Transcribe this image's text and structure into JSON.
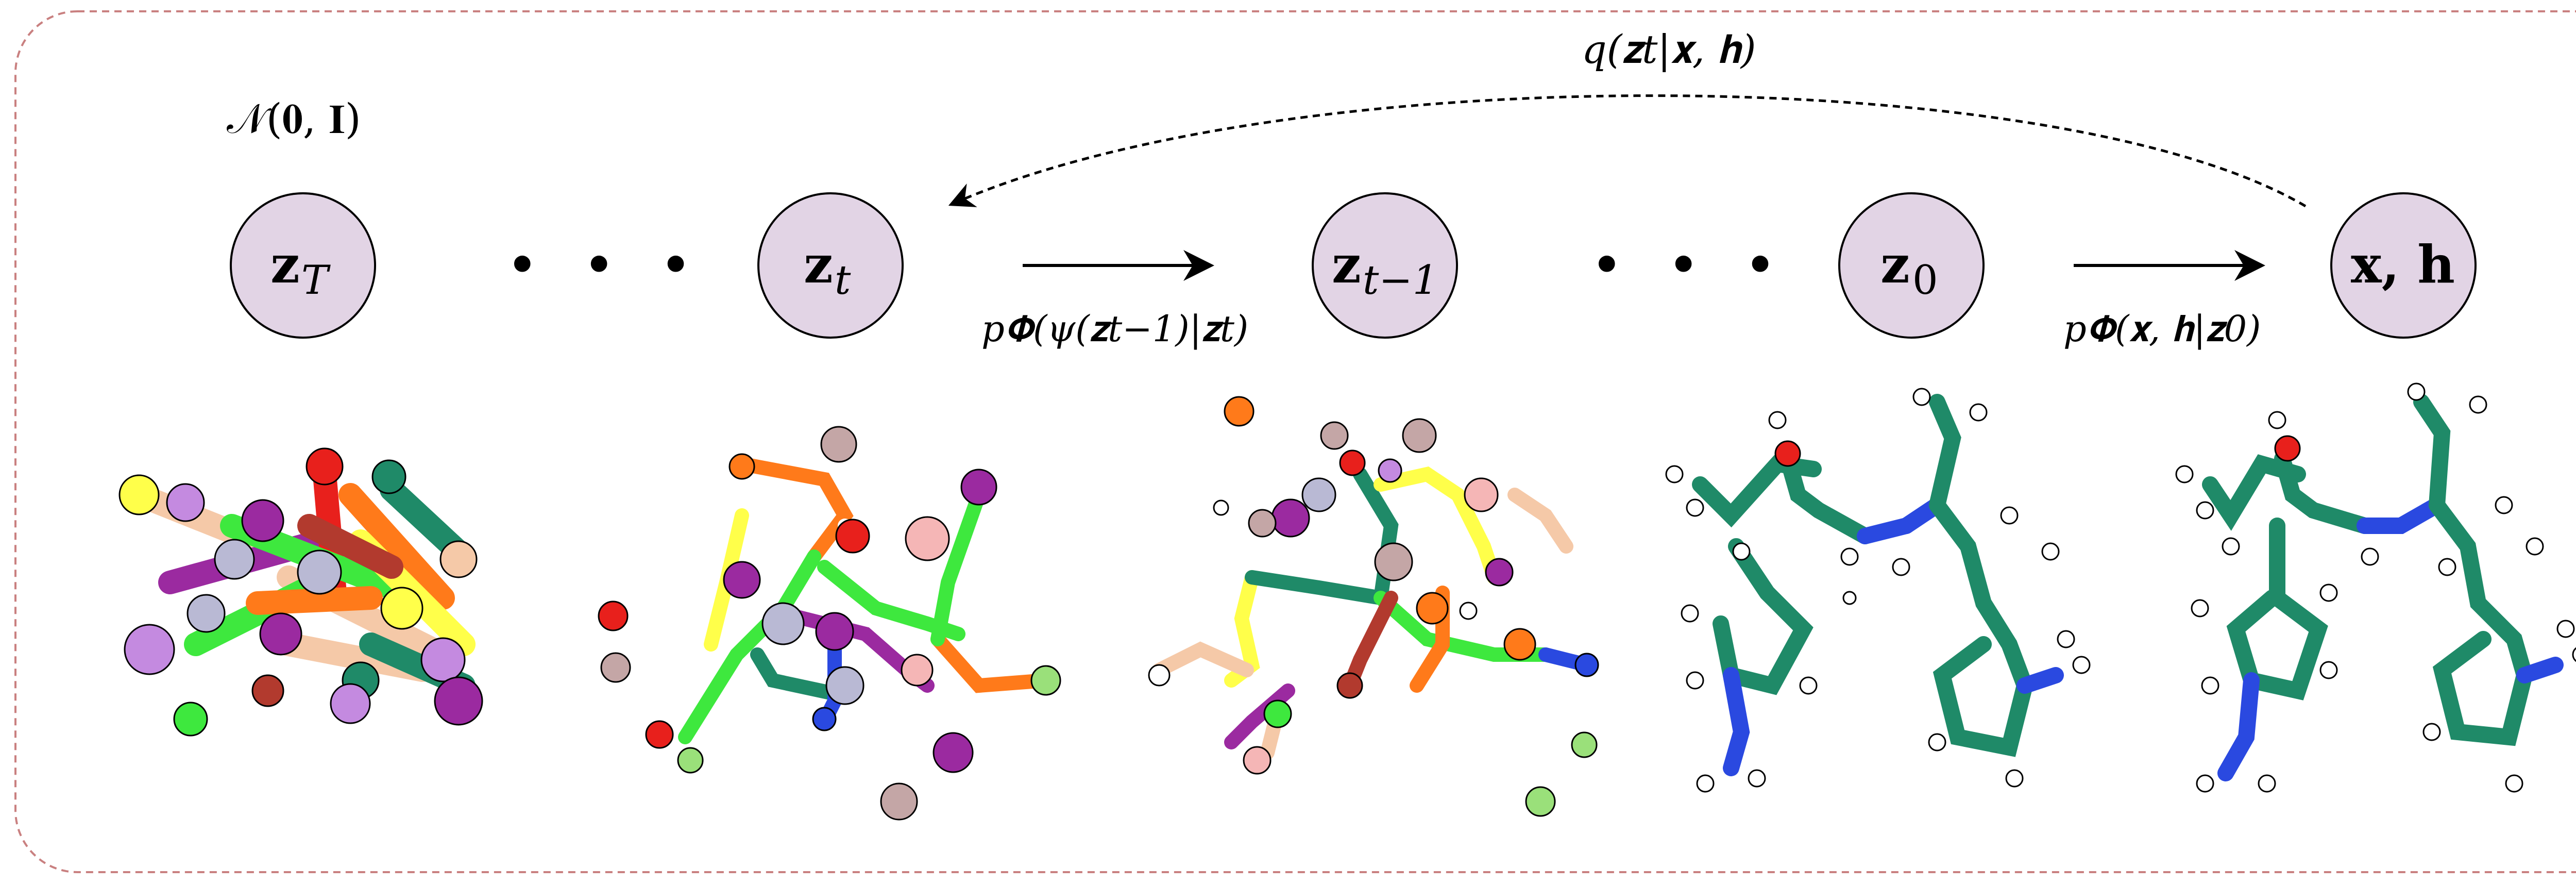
{
  "prior_label": "𝒩(𝟎, 𝐈)",
  "nodes": [
    {
      "id": "zT",
      "label": "𝐳",
      "sub": "T"
    },
    {
      "id": "zt",
      "label": "𝐳",
      "sub": "t"
    },
    {
      "id": "zt1",
      "label": "𝐳",
      "sub": "t−1"
    },
    {
      "id": "z0",
      "label": "𝐳",
      "sub": "0"
    },
    {
      "id": "xh",
      "label": "𝐱, 𝐡",
      "sub": ""
    }
  ],
  "ellipses": [
    "• • •",
    "• • •"
  ],
  "arrows": {
    "denoise_step_label": "p𝚽(ψ(𝐳t−1)|𝐳t)",
    "decode_label": "p𝚽(𝐱, 𝐡|𝐳0)",
    "forward_label": "q(𝐳t|𝐱, 𝐡)"
  },
  "colors": {
    "node_fill": "#e2d4e5",
    "frame": "#c98080",
    "molecule_green": "#1f8a68",
    "nitrogen": "#2a49e0",
    "oxygen": "#e8201c"
  }
}
